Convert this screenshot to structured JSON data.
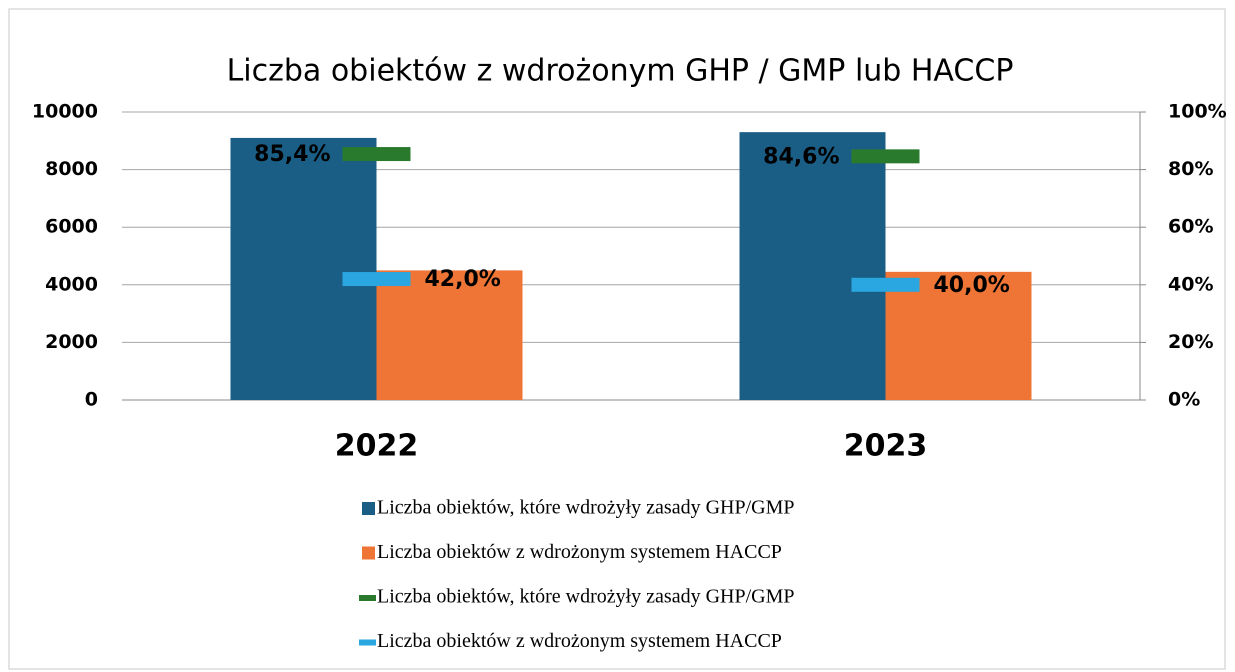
{
  "chart_data": {
    "type": "bar",
    "title": "Liczba obiektów z wdrożonym GHP / GMP lub HACCP",
    "categories": [
      "2022",
      "2023"
    ],
    "series": [
      {
        "name": "Liczba obiektów, które wdrożyły zasady GHP/GMP",
        "color": "#1a5e86",
        "values": [
          9100,
          9300
        ]
      },
      {
        "name": "Liczba obiektów z wdrożonym systemem HACCP",
        "color": "#ee7535",
        "values": [
          4500,
          4450
        ]
      },
      {
        "name": "Liczba obiektów, które wdrożyły zasady GHP/GMP",
        "color": "#2a7a2e",
        "axis": "y2",
        "values": [
          85.4,
          84.6
        ],
        "value_labels": [
          "85,4%",
          "84,6%"
        ]
      },
      {
        "name": "Liczba obiektów z wdrożonym systemem HACCP",
        "color": "#2aa6e0",
        "axis": "y2",
        "values": [
          42.0,
          40.0
        ],
        "value_labels": [
          "42,0%",
          "40,0%"
        ]
      }
    ],
    "ylim": [
      0,
      10000
    ],
    "yticks": [
      0,
      2000,
      4000,
      6000,
      8000,
      10000
    ],
    "y2lim": [
      0,
      100
    ],
    "y2ticks": [
      {
        "value": 0,
        "label": "0%"
      },
      {
        "value": 20,
        "label": "20%"
      },
      {
        "value": 40,
        "label": "40%"
      },
      {
        "value": 60,
        "label": "60%"
      },
      {
        "value": 80,
        "label": "80%"
      },
      {
        "value": 100,
        "label": "100%"
      }
    ],
    "grid": true
  }
}
